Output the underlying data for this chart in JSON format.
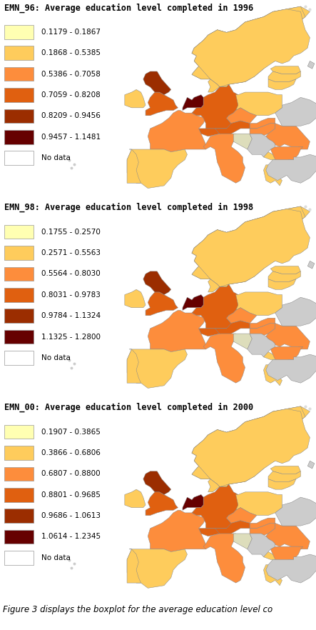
{
  "panels": [
    {
      "title": "EMN_96: Average education level completed in 1996",
      "legend_items": [
        {
          "color": "#FFFFB2",
          "label": "0.1179 - 0.1867"
        },
        {
          "color": "#FECC5C",
          "label": "0.1868 - 0.5385"
        },
        {
          "color": "#FD8D3C",
          "label": "0.5386 - 0.7058"
        },
        {
          "color": "#E06010",
          "label": "0.7059 - 0.8208"
        },
        {
          "color": "#9B2D00",
          "label": "0.8209 - 0.9456"
        },
        {
          "color": "#660000",
          "label": "0.9457 - 1.1481"
        },
        {
          "color": "#FFFFFF",
          "label": "No data"
        }
      ]
    },
    {
      "title": "EMN_98: Average education level completed in 1998",
      "legend_items": [
        {
          "color": "#FFFFB2",
          "label": "0.1755 - 0.2570"
        },
        {
          "color": "#FECC5C",
          "label": "0.2571 - 0.5563"
        },
        {
          "color": "#FD8D3C",
          "label": "0.5564 - 0.8030"
        },
        {
          "color": "#E06010",
          "label": "0.8031 - 0.9783"
        },
        {
          "color": "#9B2D00",
          "label": "0.9784 - 1.1324"
        },
        {
          "color": "#660000",
          "label": "1.1325 - 1.2800"
        },
        {
          "color": "#FFFFFF",
          "label": "No data"
        }
      ]
    },
    {
      "title": "EMN_00: Average education level completed in 2000",
      "legend_items": [
        {
          "color": "#FFFFB2",
          "label": "0.1907 - 0.3865"
        },
        {
          "color": "#FECC5C",
          "label": "0.3866 - 0.6806"
        },
        {
          "color": "#FD8D3C",
          "label": "0.6807 - 0.8800"
        },
        {
          "color": "#E06010",
          "label": "0.8801 - 0.9685"
        },
        {
          "color": "#9B2D00",
          "label": "0.9686 - 1.0613"
        },
        {
          "color": "#660000",
          "label": "1.0614 - 1.2345"
        },
        {
          "color": "#FFFFFF",
          "label": "No data"
        }
      ]
    }
  ],
  "caption": "Figure 3 displays the boxplot for the average education level co",
  "bg_color": "#FFFFFF",
  "title_fontsize": 8.5,
  "legend_fontsize": 7.5,
  "caption_fontsize": 8.5
}
